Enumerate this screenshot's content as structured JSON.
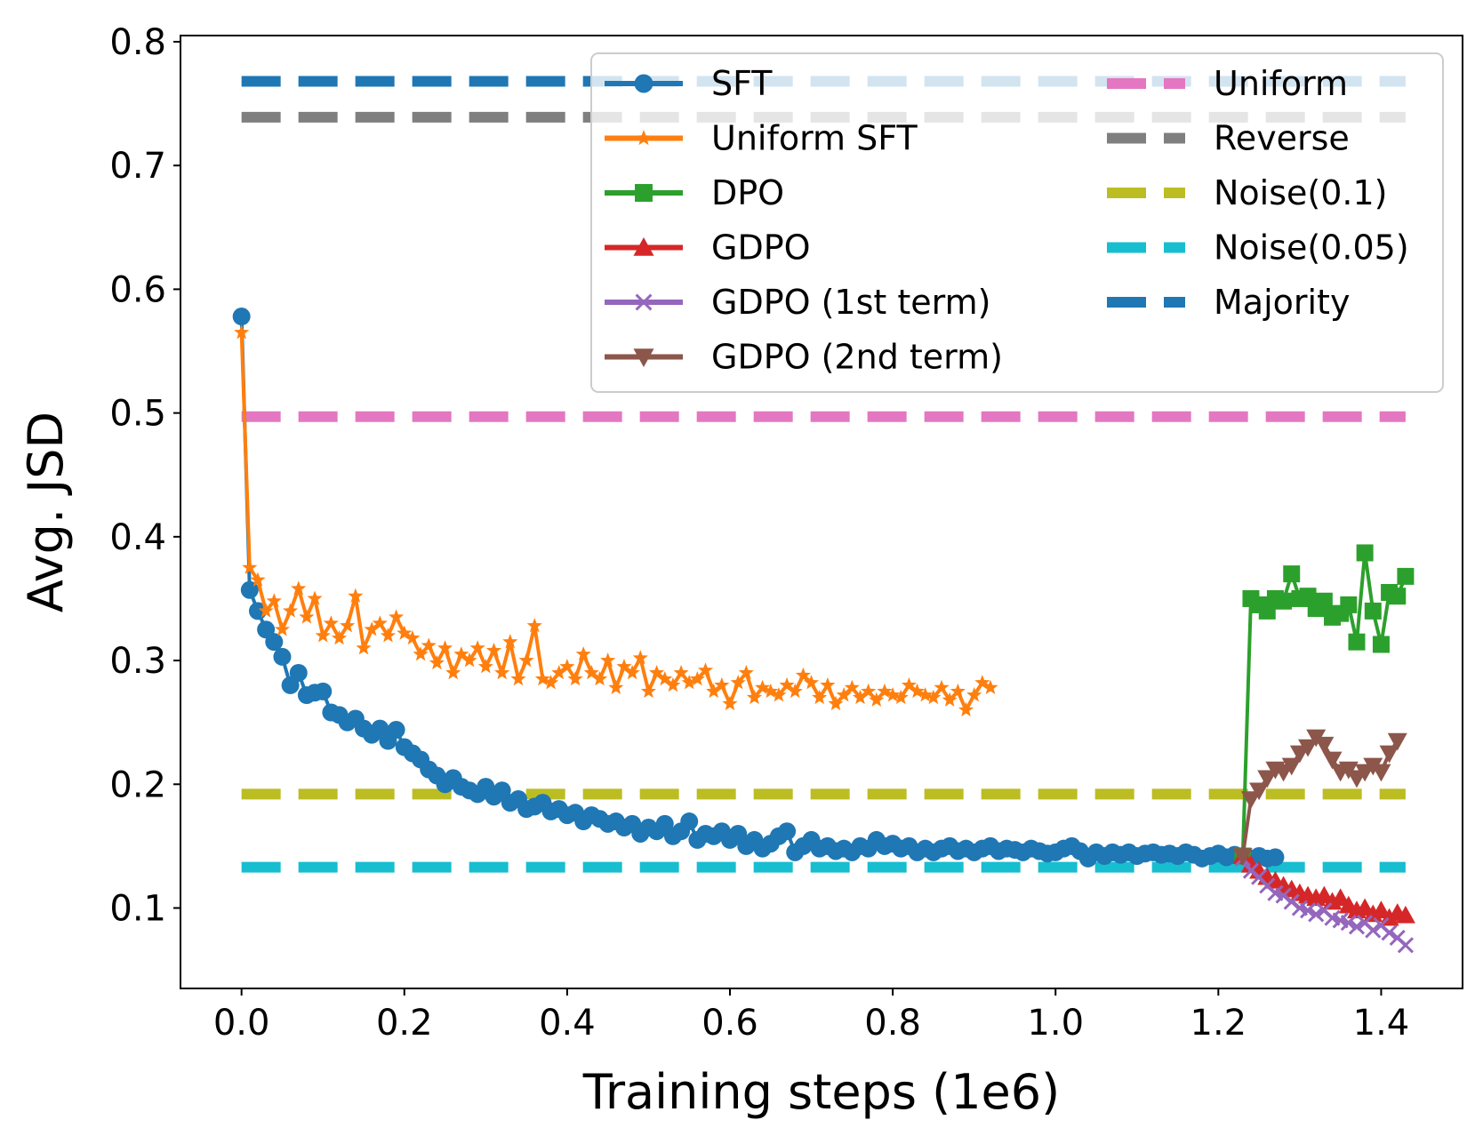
{
  "chart_data": {
    "type": "line",
    "xlabel": "Training steps (1e6)",
    "ylabel": "Avg. JSD",
    "xlim": [
      -0.075,
      1.5
    ],
    "ylim": [
      0.035,
      0.805
    ],
    "x_ticks": [
      "0.0",
      "0.2",
      "0.4",
      "0.6",
      "0.8",
      "1.0",
      "1.2",
      "1.4"
    ],
    "y_ticks": [
      "0.1",
      "0.2",
      "0.3",
      "0.4",
      "0.5",
      "0.6",
      "0.7",
      "0.8"
    ],
    "grid": false,
    "legend_position": "top-right",
    "series": [
      {
        "name": "SFT",
        "color": "#1f77b4",
        "marker": "circle",
        "x": [
          0.0,
          0.01,
          0.02,
          0.03,
          0.04,
          0.05,
          0.06,
          0.07,
          0.08,
          0.09,
          0.1,
          0.11,
          0.12,
          0.13,
          0.14,
          0.15,
          0.16,
          0.17,
          0.18,
          0.19,
          0.2,
          0.21,
          0.22,
          0.23,
          0.24,
          0.25,
          0.26,
          0.27,
          0.28,
          0.29,
          0.3,
          0.31,
          0.32,
          0.33,
          0.34,
          0.35,
          0.36,
          0.37,
          0.38,
          0.39,
          0.4,
          0.41,
          0.42,
          0.43,
          0.44,
          0.45,
          0.46,
          0.47,
          0.48,
          0.49,
          0.5,
          0.51,
          0.52,
          0.53,
          0.54,
          0.55,
          0.56,
          0.57,
          0.58,
          0.59,
          0.6,
          0.61,
          0.62,
          0.63,
          0.64,
          0.65,
          0.66,
          0.67,
          0.68,
          0.69,
          0.7,
          0.71,
          0.72,
          0.73,
          0.74,
          0.75,
          0.76,
          0.77,
          0.78,
          0.79,
          0.8,
          0.81,
          0.82,
          0.83,
          0.84,
          0.85,
          0.86,
          0.87,
          0.88,
          0.89,
          0.9,
          0.91,
          0.92,
          0.93,
          0.94,
          0.95,
          0.96,
          0.97,
          0.98,
          0.99,
          1.0,
          1.01,
          1.02,
          1.03,
          1.04,
          1.05,
          1.06,
          1.07,
          1.08,
          1.09,
          1.1,
          1.11,
          1.12,
          1.13,
          1.14,
          1.15,
          1.16,
          1.17,
          1.18,
          1.19,
          1.2,
          1.21,
          1.22,
          1.23,
          1.24,
          1.25,
          1.26,
          1.27
        ],
        "y": [
          0.578,
          0.357,
          0.34,
          0.325,
          0.315,
          0.303,
          0.28,
          0.29,
          0.272,
          0.274,
          0.275,
          0.258,
          0.256,
          0.25,
          0.253,
          0.245,
          0.24,
          0.245,
          0.235,
          0.244,
          0.23,
          0.225,
          0.22,
          0.212,
          0.207,
          0.2,
          0.205,
          0.198,
          0.195,
          0.192,
          0.198,
          0.19,
          0.195,
          0.185,
          0.188,
          0.18,
          0.182,
          0.185,
          0.178,
          0.18,
          0.175,
          0.177,
          0.17,
          0.175,
          0.172,
          0.168,
          0.17,
          0.165,
          0.168,
          0.16,
          0.165,
          0.162,
          0.168,
          0.158,
          0.162,
          0.17,
          0.155,
          0.16,
          0.158,
          0.162,
          0.155,
          0.16,
          0.15,
          0.155,
          0.148,
          0.152,
          0.158,
          0.162,
          0.145,
          0.15,
          0.155,
          0.148,
          0.15,
          0.146,
          0.148,
          0.145,
          0.15,
          0.148,
          0.155,
          0.15,
          0.152,
          0.148,
          0.15,
          0.145,
          0.148,
          0.145,
          0.148,
          0.15,
          0.146,
          0.148,
          0.145,
          0.148,
          0.15,
          0.146,
          0.148,
          0.147,
          0.145,
          0.148,
          0.146,
          0.144,
          0.145,
          0.148,
          0.15,
          0.146,
          0.14,
          0.145,
          0.142,
          0.145,
          0.143,
          0.145,
          0.142,
          0.144,
          0.145,
          0.143,
          0.144,
          0.142,
          0.145,
          0.143,
          0.14,
          0.142,
          0.144,
          0.141,
          0.143,
          0.142,
          0.14,
          0.142,
          0.14,
          0.141
        ]
      },
      {
        "name": "Uniform SFT",
        "color": "#ff7f0e",
        "marker": "star",
        "x": [
          0.0,
          0.01,
          0.02,
          0.03,
          0.04,
          0.05,
          0.06,
          0.07,
          0.08,
          0.09,
          0.1,
          0.11,
          0.12,
          0.13,
          0.14,
          0.15,
          0.16,
          0.17,
          0.18,
          0.19,
          0.2,
          0.21,
          0.22,
          0.23,
          0.24,
          0.25,
          0.26,
          0.27,
          0.28,
          0.29,
          0.3,
          0.31,
          0.32,
          0.33,
          0.34,
          0.35,
          0.36,
          0.37,
          0.38,
          0.39,
          0.4,
          0.41,
          0.42,
          0.43,
          0.44,
          0.45,
          0.46,
          0.47,
          0.48,
          0.49,
          0.5,
          0.51,
          0.52,
          0.53,
          0.54,
          0.55,
          0.56,
          0.57,
          0.58,
          0.59,
          0.6,
          0.61,
          0.62,
          0.63,
          0.64,
          0.65,
          0.66,
          0.67,
          0.68,
          0.69,
          0.7,
          0.71,
          0.72,
          0.73,
          0.74,
          0.75,
          0.76,
          0.77,
          0.78,
          0.79,
          0.8,
          0.81,
          0.82,
          0.83,
          0.84,
          0.85,
          0.86,
          0.87,
          0.88,
          0.89,
          0.9,
          0.91,
          0.92
        ],
        "y": [
          0.565,
          0.375,
          0.365,
          0.34,
          0.348,
          0.325,
          0.34,
          0.358,
          0.335,
          0.35,
          0.32,
          0.33,
          0.318,
          0.328,
          0.352,
          0.31,
          0.325,
          0.33,
          0.32,
          0.335,
          0.322,
          0.318,
          0.305,
          0.312,
          0.298,
          0.31,
          0.29,
          0.305,
          0.3,
          0.31,
          0.295,
          0.308,
          0.29,
          0.315,
          0.285,
          0.3,
          0.328,
          0.285,
          0.282,
          0.29,
          0.295,
          0.285,
          0.305,
          0.29,
          0.285,
          0.3,
          0.278,
          0.295,
          0.29,
          0.302,
          0.275,
          0.29,
          0.285,
          0.28,
          0.29,
          0.282,
          0.285,
          0.292,
          0.275,
          0.28,
          0.265,
          0.282,
          0.29,
          0.27,
          0.278,
          0.275,
          0.272,
          0.28,
          0.275,
          0.288,
          0.282,
          0.27,
          0.28,
          0.265,
          0.272,
          0.278,
          0.27,
          0.275,
          0.268,
          0.275,
          0.272,
          0.27,
          0.28,
          0.275,
          0.272,
          0.27,
          0.278,
          0.268,
          0.275,
          0.26,
          0.272,
          0.282,
          0.278
        ]
      },
      {
        "name": "DPO",
        "color": "#2ca02c",
        "marker": "square",
        "x": [
          1.23,
          1.24,
          1.25,
          1.26,
          1.27,
          1.28,
          1.29,
          1.3,
          1.31,
          1.32,
          1.33,
          1.34,
          1.35,
          1.36,
          1.37,
          1.38,
          1.39,
          1.4,
          1.41,
          1.42,
          1.43
        ],
        "y": [
          0.142,
          0.35,
          0.345,
          0.34,
          0.35,
          0.348,
          0.37,
          0.35,
          0.352,
          0.342,
          0.348,
          0.335,
          0.338,
          0.345,
          0.315,
          0.387,
          0.34,
          0.313,
          0.355,
          0.352,
          0.368
        ]
      },
      {
        "name": "GDPO",
        "color": "#d62728",
        "marker": "triangle-up",
        "x": [
          1.23,
          1.24,
          1.25,
          1.26,
          1.27,
          1.28,
          1.29,
          1.3,
          1.31,
          1.32,
          1.33,
          1.34,
          1.35,
          1.36,
          1.37,
          1.38,
          1.39,
          1.4,
          1.41,
          1.42,
          1.43
        ],
        "y": [
          0.142,
          0.135,
          0.13,
          0.125,
          0.122,
          0.118,
          0.115,
          0.112,
          0.11,
          0.108,
          0.11,
          0.105,
          0.108,
          0.102,
          0.098,
          0.1,
          0.095,
          0.098,
          0.092,
          0.096,
          0.094
        ]
      },
      {
        "name": "GDPO (1st term)",
        "color": "#9467bd",
        "marker": "x",
        "x": [
          1.23,
          1.24,
          1.25,
          1.26,
          1.27,
          1.28,
          1.29,
          1.3,
          1.31,
          1.32,
          1.33,
          1.34,
          1.35,
          1.36,
          1.37,
          1.38,
          1.39,
          1.4,
          1.41,
          1.42,
          1.43
        ],
        "y": [
          0.14,
          0.13,
          0.125,
          0.118,
          0.112,
          0.11,
          0.105,
          0.1,
          0.098,
          0.095,
          0.098,
          0.092,
          0.09,
          0.088,
          0.085,
          0.088,
          0.082,
          0.086,
          0.08,
          0.076,
          0.07
        ]
      },
      {
        "name": "GDPO (2nd term)",
        "color": "#8c564b",
        "marker": "triangle-down",
        "x": [
          1.23,
          1.24,
          1.25,
          1.26,
          1.27,
          1.28,
          1.29,
          1.3,
          1.31,
          1.32,
          1.33,
          1.34,
          1.35,
          1.36,
          1.37,
          1.38,
          1.39,
          1.4,
          1.41,
          1.42
        ],
        "y": [
          0.142,
          0.188,
          0.195,
          0.205,
          0.212,
          0.21,
          0.215,
          0.225,
          0.23,
          0.238,
          0.232,
          0.22,
          0.21,
          0.212,
          0.205,
          0.21,
          0.215,
          0.21,
          0.225,
          0.235
        ]
      }
    ],
    "baselines": [
      {
        "name": "Uniform",
        "color": "#e377c2",
        "y": 0.497,
        "x_from": 0.0,
        "x_to": 1.43
      },
      {
        "name": "Reverse",
        "color": "#7f7f7f",
        "y": 0.739,
        "x_from": 0.0,
        "x_to": 1.43
      },
      {
        "name": "Noise(0.1)",
        "color": "#bcbd22",
        "y": 0.192,
        "x_from": 0.0,
        "x_to": 1.43
      },
      {
        "name": "Noise(0.05)",
        "color": "#17becf",
        "y": 0.133,
        "x_from": 0.0,
        "x_to": 1.43
      },
      {
        "name": "Majority",
        "color": "#1f77b4",
        "y": 0.768,
        "x_from": 0.0,
        "x_to": 1.43
      }
    ]
  }
}
